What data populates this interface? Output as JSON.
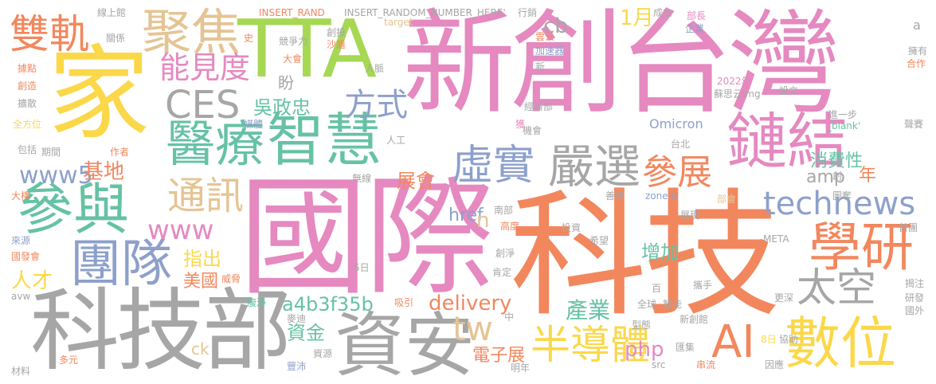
{
  "colors": {
    "pink": "#e589c0",
    "orange": "#f2875e",
    "gray": "#a6a6a6",
    "yellow": "#fbd84a",
    "green": "#a6d854",
    "teal": "#66c2a5",
    "blue": "#8da0cb",
    "tan": "#e5c494"
  },
  "words": [
    {
      "text": "新創台灣",
      "color": "pink"
    },
    {
      "text": "國際",
      "color": "pink"
    },
    {
      "text": "科技",
      "color": "orange"
    },
    {
      "text": "科技部",
      "color": "gray"
    },
    {
      "text": "家",
      "color": "yellow"
    },
    {
      "text": "TTA",
      "color": "green"
    },
    {
      "text": "聚焦",
      "color": "tan"
    },
    {
      "text": "雙軌",
      "color": "orange"
    },
    {
      "text": "參與",
      "color": "teal"
    },
    {
      "text": "鏈結",
      "color": "pink"
    },
    {
      "text": "資安",
      "color": "gray"
    },
    {
      "text": "數位",
      "color": "yellow"
    },
    {
      "text": "醫療",
      "color": "teal"
    },
    {
      "text": "智慧",
      "color": "teal"
    },
    {
      "text": "團隊",
      "color": "blue"
    },
    {
      "text": "學研",
      "color": "orange"
    },
    {
      "text": "嚴選",
      "color": "gray"
    },
    {
      "text": "虛實",
      "color": "blue"
    },
    {
      "text": "參展",
      "color": "orange"
    },
    {
      "text": "半導體",
      "color": "yellow"
    },
    {
      "text": "CES",
      "color": "gray"
    },
    {
      "text": "AI",
      "color": "orange"
    },
    {
      "text": "太空",
      "color": "gray"
    },
    {
      "text": "通訊",
      "color": "tan"
    },
    {
      "text": "technews",
      "color": "blue"
    },
    {
      "text": "能見度",
      "color": "pink"
    },
    {
      "text": "方式",
      "color": "blue"
    },
    {
      "text": "www5",
      "color": "blue"
    },
    {
      "text": "www",
      "color": "pink"
    },
    {
      "text": "基地",
      "color": "orange"
    },
    {
      "text": "吳政忠",
      "color": "teal"
    },
    {
      "text": "1月",
      "color": "yellow"
    },
    {
      "text": "cb",
      "color": "gray"
    },
    {
      "text": "tw",
      "color": "tan"
    },
    {
      "text": "delivery",
      "color": "orange"
    },
    {
      "text": "a4b3f35b",
      "color": "teal"
    },
    {
      "text": "產業",
      "color": "teal"
    },
    {
      "text": "php",
      "color": "pink"
    },
    {
      "text": "指出",
      "color": "yellow"
    },
    {
      "text": "人才",
      "color": "yellow"
    },
    {
      "text": "美國",
      "color": "orange"
    },
    {
      "text": "增加",
      "color": "teal"
    },
    {
      "text": "消費性",
      "color": "teal"
    },
    {
      "text": "展會",
      "color": "orange"
    },
    {
      "text": "資金",
      "color": "teal"
    },
    {
      "text": "電子展",
      "color": "orange"
    },
    {
      "text": "href",
      "color": "blue"
    },
    {
      "text": "amp",
      "color": "gray"
    },
    {
      "text": "年",
      "color": "orange"
    },
    {
      "text": "盼",
      "color": "gray"
    },
    {
      "text": "ck",
      "color": "tan"
    },
    {
      "text": "n",
      "color": "tan"
    },
    {
      "text": "Omicron",
      "color": "blue"
    },
    {
      "text": "INSERT_RAND",
      "color": "orange"
    },
    {
      "text": "INSERT_RANDOM_NUMBER_HERE'",
      "color": "gray"
    },
    {
      "text": "線上館",
      "color": "gray"
    },
    {
      "text": "關係",
      "color": "gray"
    },
    {
      "text": "競爭力",
      "color": "gray"
    },
    {
      "text": "大會",
      "color": "orange"
    },
    {
      "text": "人脈",
      "color": "gray"
    },
    {
      "text": "target",
      "color": "tan"
    },
    {
      "text": "雲云",
      "color": "orange"
    },
    {
      "text": "加速器",
      "color": "blue"
    },
    {
      "text": "行銷",
      "color": "gray"
    },
    {
      "text": "成立",
      "color": "gray"
    },
    {
      "text": "部長",
      "color": "pink"
    },
    {
      "text": "企業",
      "color": "blue"
    },
    {
      "text": "擁有",
      "color": "gray"
    },
    {
      "text": "合作",
      "color": "orange"
    },
    {
      "text": "a",
      "color": "gray"
    },
    {
      "text": "2022年",
      "color": "pink"
    },
    {
      "text": "蘇思云",
      "color": "gray"
    },
    {
      "text": "img",
      "color": "gray"
    },
    {
      "text": "設立",
      "color": "gray"
    },
    {
      "text": "經濟部",
      "color": "gray"
    },
    {
      "text": "進一步",
      "color": "gray"
    },
    {
      "text": "_blank'",
      "color": "teal"
    },
    {
      "text": "聲賽",
      "color": "gray"
    },
    {
      "text": "機會",
      "color": "gray"
    },
    {
      "text": "獲",
      "color": "pink"
    },
    {
      "text": "人工",
      "color": "gray"
    },
    {
      "text": "台北",
      "color": "gray"
    },
    {
      "text": "無線",
      "color": "gray"
    },
    {
      "text": "善用",
      "color": "gray"
    },
    {
      "text": "zoneid",
      "color": "blue"
    },
    {
      "text": "南部",
      "color": "gray"
    },
    {
      "text": "部會",
      "color": "tan"
    },
    {
      "text": "投資",
      "color": "gray"
    },
    {
      "text": "高度",
      "color": "orange"
    },
    {
      "text": "希望",
      "color": "gray"
    },
    {
      "text": "展現",
      "color": "gray"
    },
    {
      "text": "首團",
      "color": "gray"
    },
    {
      "text": "META",
      "color": "gray"
    },
    {
      "text": "創淨",
      "color": "gray"
    },
    {
      "text": "肯定",
      "color": "gray"
    },
    {
      "text": "5日",
      "color": "gray"
    },
    {
      "text": "百",
      "color": "gray"
    },
    {
      "text": "攜手",
      "color": "gray"
    },
    {
      "text": "更深",
      "color": "gray"
    },
    {
      "text": "全球",
      "color": "gray"
    },
    {
      "text": "智能",
      "color": "gray"
    },
    {
      "text": "揭注",
      "color": "gray"
    },
    {
      "text": "研發",
      "color": "gray"
    },
    {
      "text": "國外",
      "color": "gray"
    },
    {
      "text": "型態",
      "color": "gray"
    },
    {
      "text": "新創館",
      "color": "gray"
    },
    {
      "text": "8日",
      "color": "yellow"
    },
    {
      "text": "協助",
      "color": "gray"
    },
    {
      "text": "匯集",
      "color": "gray"
    },
    {
      "text": "src",
      "color": "gray"
    },
    {
      "text": "串流",
      "color": "orange"
    },
    {
      "text": "因應",
      "color": "gray"
    },
    {
      "text": "明年",
      "color": "gray"
    },
    {
      "text": "中",
      "color": "gray"
    },
    {
      "text": "麥迪",
      "color": "gray"
    },
    {
      "text": "豐沛",
      "color": "blue"
    },
    {
      "text": "資源",
      "color": "gray"
    },
    {
      "text": "吸引",
      "color": "orange"
    },
    {
      "text": "威脅",
      "color": "orange"
    },
    {
      "text": "多元",
      "color": "orange"
    },
    {
      "text": "材料",
      "color": "gray"
    },
    {
      "text": "avw",
      "color": "gray"
    },
    {
      "text": "國發會",
      "color": "orange"
    },
    {
      "text": "來源",
      "color": "blue"
    },
    {
      "text": "大樓",
      "color": "orange"
    },
    {
      "text": "期間",
      "color": "gray"
    },
    {
      "text": "作者",
      "color": "orange"
    },
    {
      "text": "包括",
      "color": "gray"
    },
    {
      "text": "全方位",
      "color": "yellow"
    },
    {
      "text": "擴散",
      "color": "gray"
    },
    {
      "text": "創造",
      "color": "orange"
    },
    {
      "text": "據點",
      "color": "orange"
    },
    {
      "text": "史",
      "color": "orange"
    },
    {
      "text": "創投",
      "color": "gray"
    },
    {
      "text": "沙盾",
      "color": "orange"
    },
    {
      "text": "媒體",
      "color": "blue"
    },
    {
      "text": "腹淨",
      "color": "teal"
    },
    {
      "text": "新",
      "color": "gray"
    },
    {
      "text": "創",
      "color": "gray"
    },
    {
      "text": "圖奪",
      "color": "gray"
    }
  ]
}
